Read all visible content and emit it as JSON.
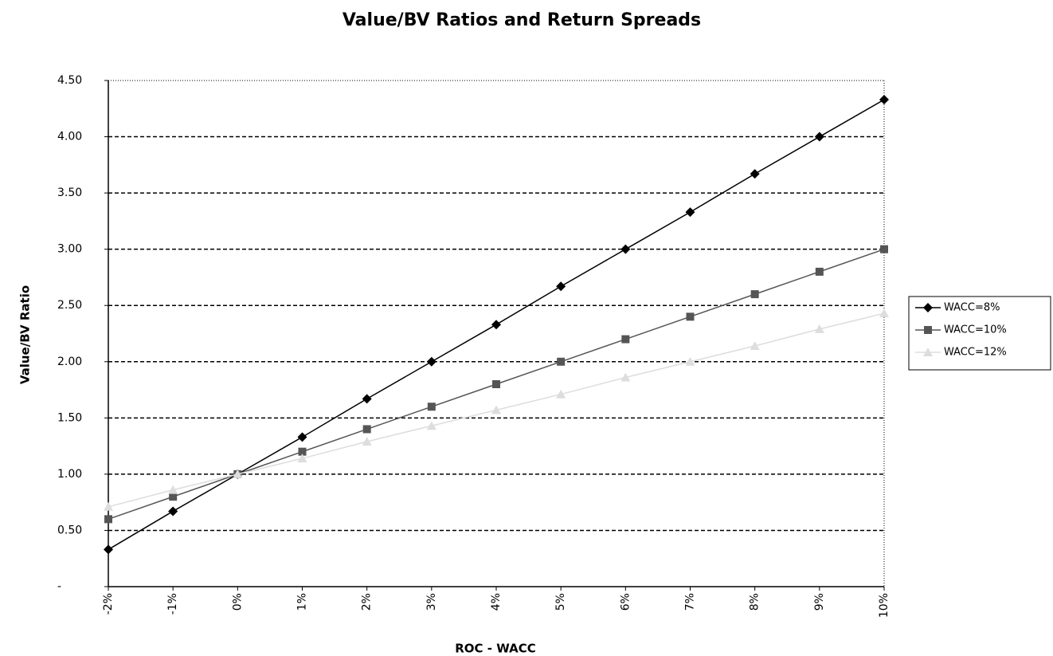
{
  "chart_data": {
    "type": "line",
    "title": "Value/BV Ratios and Return Spreads",
    "x_label": "ROC - WACC",
    "y_label": "Value/BV Ratio",
    "categories": [
      "-2%",
      "-1%",
      "0%",
      "1%",
      "2%",
      "3%",
      "4%",
      "5%",
      "6%",
      "7%",
      "8%",
      "9%",
      "10%"
    ],
    "series": [
      {
        "name": "WACC=8%",
        "color": "#000000",
        "marker": "diamond",
        "values": [
          0.33,
          0.67,
          1.0,
          1.33,
          1.67,
          2.0,
          2.33,
          2.67,
          3.0,
          3.33,
          3.67,
          4.0,
          4.33
        ]
      },
      {
        "name": "WACC=10%",
        "color": "#555555",
        "marker": "square",
        "values": [
          0.6,
          0.8,
          1.0,
          1.2,
          1.4,
          1.6,
          1.8,
          2.0,
          2.2,
          2.4,
          2.6,
          2.8,
          3.0
        ]
      },
      {
        "name": "WACC=12%",
        "color": "#dddddd",
        "marker": "triangle",
        "values": [
          0.71,
          0.86,
          1.0,
          1.14,
          1.29,
          1.43,
          1.57,
          1.71,
          1.86,
          2.0,
          2.14,
          2.29,
          2.43
        ]
      }
    ],
    "ylim": [
      0,
      4.5
    ],
    "yticks": [
      {
        "value": 0,
        "label": "-"
      },
      {
        "value": 0.5,
        "label": "0.50"
      },
      {
        "value": 1,
        "label": "1.00"
      },
      {
        "value": 1.5,
        "label": "1.50"
      },
      {
        "value": 2,
        "label": "2.00"
      },
      {
        "value": 2.5,
        "label": "2.50"
      },
      {
        "value": 3,
        "label": "3.00"
      },
      {
        "value": 3.5,
        "label": "3.50"
      },
      {
        "value": 4,
        "label": "4.00"
      },
      {
        "value": 4.5,
        "label": "4.50"
      }
    ],
    "grid": true,
    "legend": "right"
  }
}
